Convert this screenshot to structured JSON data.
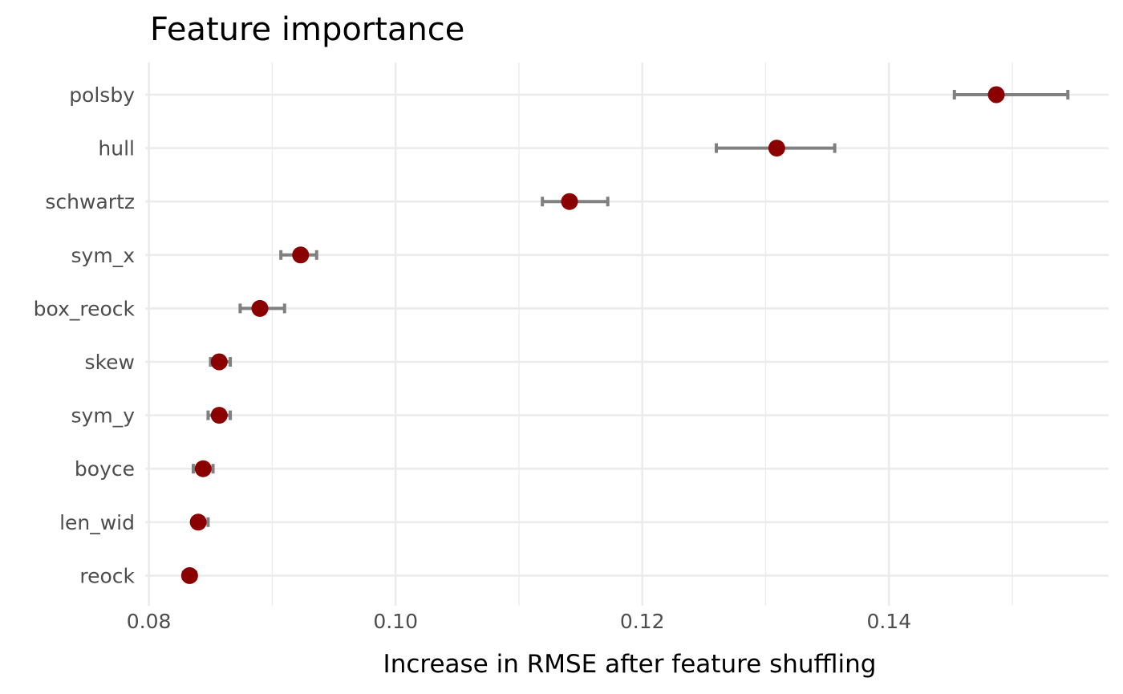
{
  "chart_data": {
    "type": "scatter",
    "title": "Feature importance",
    "xlabel": "Increase in RMSE after feature shuffling",
    "ylabel": "",
    "xlim": [
      0.0797,
      0.1578
    ],
    "x_ticks": [
      {
        "value": 0.08,
        "label": "0.08"
      },
      {
        "value": 0.1,
        "label": "0.10"
      },
      {
        "value": 0.12,
        "label": "0.12"
      },
      {
        "value": 0.14,
        "label": "0.14"
      }
    ],
    "x_minor_ticks": [
      0.09,
      0.11,
      0.13,
      0.15
    ],
    "grid": true,
    "point_color": "#8b0000",
    "errorbar_color": "#808080",
    "categories": [
      "polsby",
      "hull",
      "schwartz",
      "sym_x",
      "box_reock",
      "skew",
      "sym_y",
      "boyce",
      "len_wid",
      "reock"
    ],
    "points": [
      {
        "feature": "polsby",
        "importance": 0.1487,
        "lower": 0.1453,
        "upper": 0.1545
      },
      {
        "feature": "hull",
        "importance": 0.1309,
        "lower": 0.126,
        "upper": 0.1356
      },
      {
        "feature": "schwartz",
        "importance": 0.1141,
        "lower": 0.1119,
        "upper": 0.1172
      },
      {
        "feature": "sym_x",
        "importance": 0.0923,
        "lower": 0.0907,
        "upper": 0.0936
      },
      {
        "feature": "box_reock",
        "importance": 0.089,
        "lower": 0.0874,
        "upper": 0.091
      },
      {
        "feature": "skew",
        "importance": 0.0857,
        "lower": 0.085,
        "upper": 0.0866
      },
      {
        "feature": "sym_y",
        "importance": 0.0857,
        "lower": 0.0848,
        "upper": 0.0866
      },
      {
        "feature": "boyce",
        "importance": 0.0844,
        "lower": 0.0836,
        "upper": 0.0852
      },
      {
        "feature": "len_wid",
        "importance": 0.084,
        "lower": 0.0836,
        "upper": 0.0848
      },
      {
        "feature": "reock",
        "importance": 0.0833,
        "lower": 0.0828,
        "upper": 0.0838
      }
    ]
  }
}
